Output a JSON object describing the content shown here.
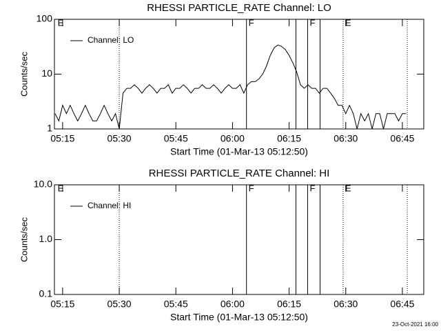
{
  "chart_data": [
    {
      "type": "line",
      "title": "RHESSI PARTICLE_RATE Channel: LO",
      "xlabel": "Start Time (01-Mar-13 05:12:50)",
      "ylabel": "Counts/sec",
      "ylog": true,
      "legend": "upper left",
      "xlim": [
        312.83,
        410.67
      ],
      "xticks": [
        {
          "value": 315,
          "label": "05:15"
        },
        {
          "value": 330,
          "label": "05:30"
        },
        {
          "value": 345,
          "label": "05:45"
        },
        {
          "value": 360,
          "label": "06:00"
        },
        {
          "value": 375,
          "label": "06:15"
        },
        {
          "value": 390,
          "label": "06:30"
        },
        {
          "value": 405,
          "label": "06:45"
        }
      ],
      "ylim": [
        1,
        100
      ],
      "yticks": [
        1,
        10,
        100
      ],
      "x": [
        313,
        314,
        315,
        316,
        317,
        318,
        319,
        320,
        321,
        322,
        323,
        324,
        325,
        326,
        327,
        328,
        329,
        330,
        331,
        332,
        333,
        334,
        335,
        336,
        337,
        338,
        339,
        340,
        341,
        342,
        343,
        344,
        345,
        346,
        347,
        348,
        349,
        350,
        351,
        352,
        353,
        354,
        355,
        356,
        357,
        358,
        359,
        360,
        361,
        362,
        363,
        364,
        365,
        366,
        367,
        368,
        369,
        370,
        371,
        372,
        373,
        374,
        375,
        376,
        377,
        378,
        379,
        380,
        381,
        382,
        383,
        384,
        385,
        386,
        387,
        388,
        389,
        390,
        391,
        392,
        393,
        394,
        395,
        396,
        397,
        398,
        399,
        400,
        401,
        402,
        403,
        404,
        405,
        406
      ],
      "series": [
        {
          "name": "Channel: LO",
          "color": "#000000",
          "values": [
            1.9,
            1.4,
            2.7,
            1.9,
            2.7,
            1.9,
            1.4,
            1.9,
            2.7,
            1.9,
            1.4,
            1.4,
            1.9,
            2.7,
            1.9,
            1.4,
            1.9,
            1.0,
            4.5,
            5.5,
            5.5,
            6.4,
            5.5,
            4.5,
            5.5,
            6.4,
            5.5,
            4.5,
            5.5,
            5.5,
            6.4,
            4.5,
            5.5,
            5.5,
            6.4,
            5.5,
            4.5,
            5.5,
            5.5,
            6.4,
            5.5,
            5.5,
            6.4,
            5.5,
            4.5,
            5.5,
            6.4,
            5.5,
            5.5,
            6.4,
            4.5,
            6.4,
            7.3,
            7.3,
            8.2,
            10,
            14,
            22,
            30,
            34,
            32,
            28,
            22,
            16,
            11,
            6.4,
            5.5,
            6.4,
            5.5,
            5.5,
            4.5,
            5.5,
            5.5,
            4.5,
            3.6,
            2.7,
            2.7,
            1.9,
            2.7,
            1.9,
            1.0,
            1.9,
            1.4,
            1.9,
            1.0,
            1.9,
            1.9,
            1.0,
            1.9,
            1.9,
            1.9,
            1.4,
            1.9,
            1.9
          ]
        }
      ],
      "vlines": [
        {
          "x": 330,
          "style": "dotted"
        },
        {
          "x": 363.7,
          "style": "solid"
        },
        {
          "x": 376.8,
          "style": "solid"
        },
        {
          "x": 379.9,
          "style": "solid"
        },
        {
          "x": 383.2,
          "style": "solid"
        },
        {
          "x": 389.3,
          "style": "dotted"
        },
        {
          "x": 406.3,
          "style": "dotted"
        }
      ],
      "flags": [
        {
          "x": 313.3,
          "label": "E"
        },
        {
          "x": 363.9,
          "label": "F"
        },
        {
          "x": 380.1,
          "label": "F"
        },
        {
          "x": 389.5,
          "label": "E"
        }
      ]
    },
    {
      "type": "line",
      "title": "RHESSI PARTICLE_RATE Channel: HI",
      "xlabel": "Start Time (01-Mar-13 05:12:50)",
      "ylabel": "Counts/sec",
      "ylog": true,
      "legend": "upper left",
      "xlim": [
        312.83,
        410.67
      ],
      "xticks": [
        {
          "value": 315,
          "label": "05:15"
        },
        {
          "value": 330,
          "label": "05:30"
        },
        {
          "value": 345,
          "label": "05:45"
        },
        {
          "value": 360,
          "label": "06:00"
        },
        {
          "value": 375,
          "label": "06:15"
        },
        {
          "value": 390,
          "label": "06:30"
        },
        {
          "value": 405,
          "label": "06:45"
        }
      ],
      "ylim": [
        0.1,
        10
      ],
      "yticks": [
        0.1,
        {
          "value": 1,
          "label": "1.0"
        },
        {
          "value": 10,
          "label": "10.0"
        }
      ],
      "x": [],
      "series": [
        {
          "name": "Channel: HI",
          "color": "#000000",
          "values": []
        }
      ],
      "vlines": [
        {
          "x": 330,
          "style": "dotted"
        },
        {
          "x": 363.7,
          "style": "solid"
        },
        {
          "x": 376.8,
          "style": "solid"
        },
        {
          "x": 379.9,
          "style": "solid"
        },
        {
          "x": 383.2,
          "style": "solid"
        },
        {
          "x": 389.3,
          "style": "dotted"
        },
        {
          "x": 406.3,
          "style": "dotted"
        }
      ],
      "flags": [
        {
          "x": 313.3,
          "label": "E"
        },
        {
          "x": 363.9,
          "label": "F"
        },
        {
          "x": 380.1,
          "label": "F"
        },
        {
          "x": 389.5,
          "label": "E"
        }
      ]
    }
  ],
  "footer": "23-Oct-2021 16:00"
}
